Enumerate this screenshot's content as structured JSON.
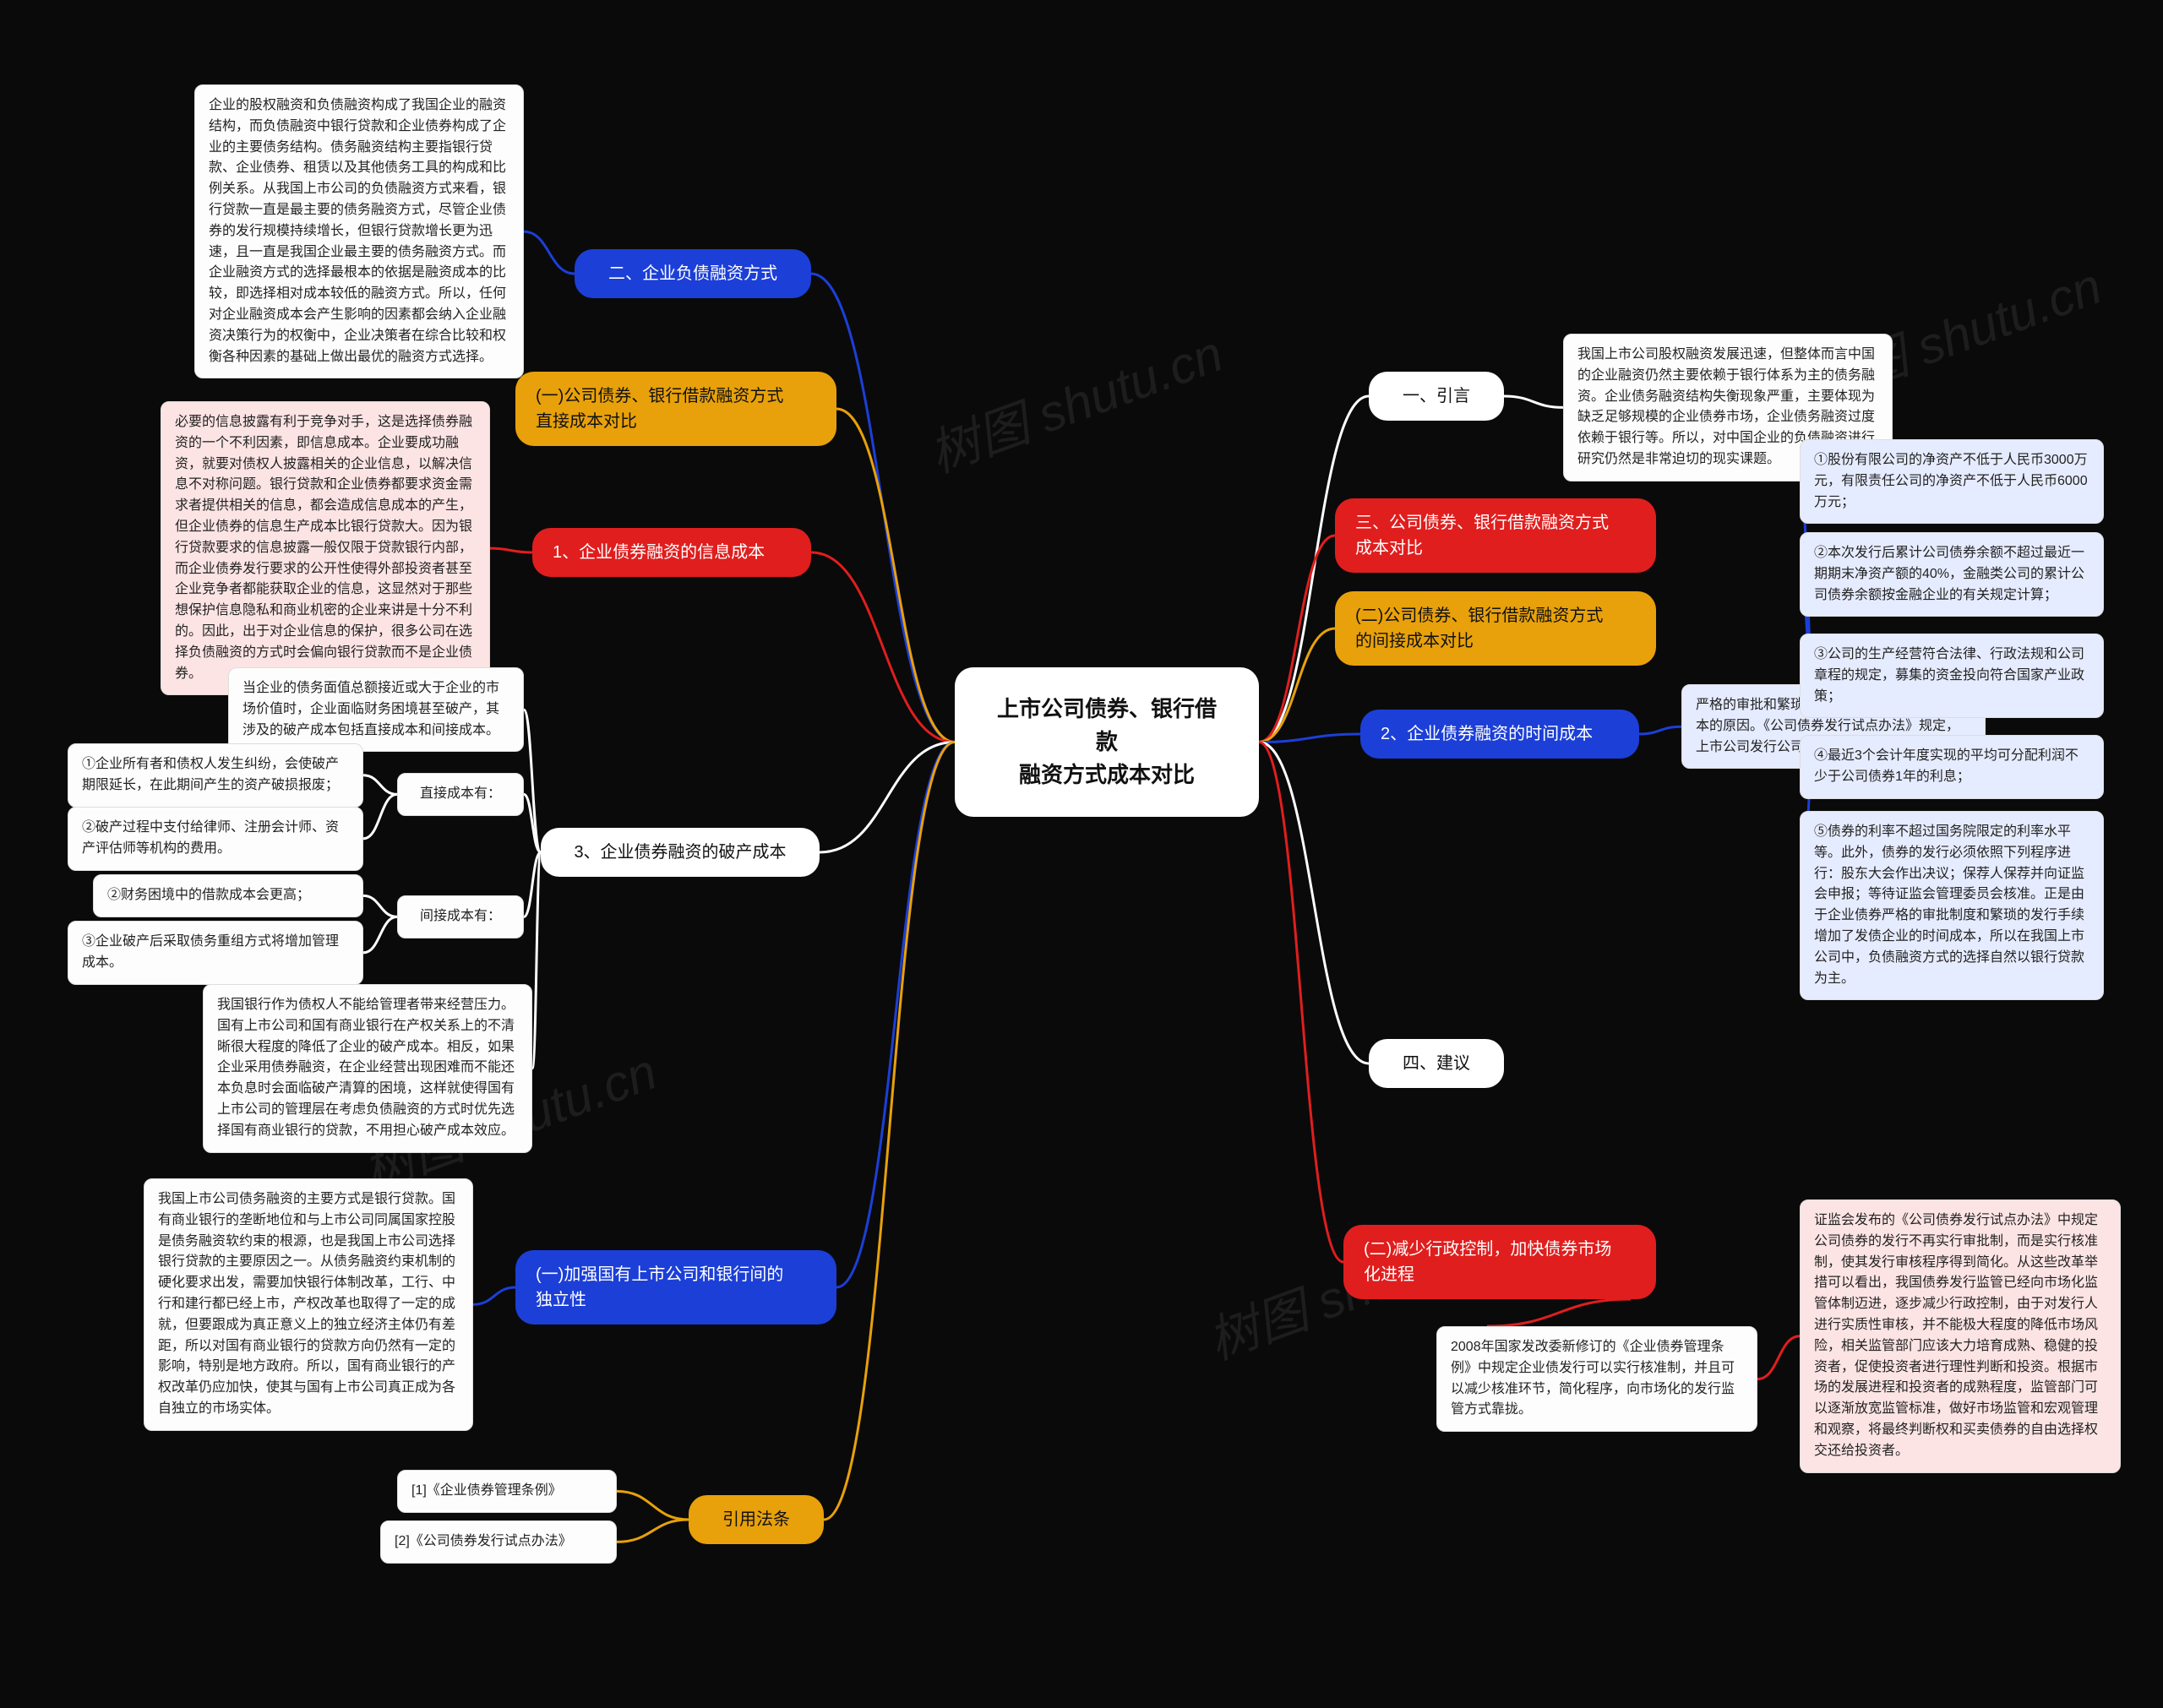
{
  "watermark": "树图 shutu.cn",
  "center": {
    "label": "上市公司债券、银行借款\n融资方式成本对比",
    "bg": "#ffffff",
    "fg": "#111111"
  },
  "branches": {
    "b1": {
      "label": "一、引言",
      "bg": "#ffffff",
      "fg": "#111111",
      "edge": "#ffffff"
    },
    "b1_leaf": {
      "text": "我国上市公司股权融资发展迅速，但整体而言中国的企业融资仍然主要依赖于银行体系为主的债务融资。企业债务融资结构失衡现象严重，主要体现为缺乏足够规模的企业债券市场，企业债务融资过度依赖于银行等。所以，对中国企业的负债融资进行研究仍然是非常迫切的现实课题。"
    },
    "b2": {
      "label": "二、企业负债融资方式",
      "bg": "#1c3fd7",
      "fg": "#ffffff",
      "edge": "#1c3fd7"
    },
    "b2_leaf": {
      "text": "企业的股权融资和负债融资构成了我国企业的融资结构，而负债融资中银行贷款和企业债券构成了企业的主要债务结构。债务融资结构主要指银行贷款、企业债券、租赁以及其他债务工具的构成和比例关系。从我国上市公司的负债融资方式来看，银行贷款一直是最主要的债务融资方式，尽管企业债券的发行规模持续增长，但银行贷款增长更为迅速，且一直是我国企业最主要的债务融资方式。而企业融资方式的选择最根本的依据是融资成本的比较，即选择相对成本较低的融资方式。所以，任何对企业融资成本会产生影响的因素都会纳入企业融资决策行为的权衡中，企业决策者在综合比较和权衡各种因素的基础上做出最优的融资方式选择。"
    },
    "b3": {
      "label": "三、公司债券、银行借款融资方式\n成本对比",
      "bg": "#e01e1e",
      "fg": "#ffffff",
      "edge": "#e01e1e"
    },
    "b3a": {
      "label": "(一)公司债券、银行借款融资方式\n直接成本对比",
      "bg": "#e8a10a",
      "fg": "#111111",
      "edge": "#e8a10a"
    },
    "b3b": {
      "label": "(二)公司债券、银行借款融资方式\n的间接成本对比",
      "bg": "#e8a10a",
      "fg": "#111111",
      "edge": "#e8a10a"
    },
    "b3b1": {
      "label": "1、企业债券融资的信息成本",
      "bg": "#e01e1e",
      "fg": "#ffffff",
      "edge": "#e01e1e"
    },
    "b3b1_leaf": {
      "text": "必要的信息披露有利于竞争对手，这是选择债券融资的一个不利因素，即信息成本。企业要成功融资，就要对债权人披露相关的企业信息，以解决信息不对称问题。银行贷款和企业债券都要求资金需求者提供相关的信息，都会造成信息成本的产生，但企业债券的信息生产成本比银行贷款大。因为银行贷款要求的信息披露一般仅限于贷款银行内部，而企业债券发行要求的公开性使得外部投资者甚至企业竞争者都能获取企业的信息，这显然对于那些想保护信息隐私和商业机密的企业来讲是十分不利的。因此，出于对企业信息的保护，很多公司在选择负债融资的方式时会偏向银行贷款而不是企业债券。",
      "bg": "#fde4e4"
    },
    "b3b2": {
      "label": "2、企业债券融资的时间成本",
      "bg": "#1c3fd7",
      "fg": "#ffffff",
      "edge": "#1c3fd7"
    },
    "b3b2_intro": {
      "text": "严格的审批和繁琐的发行手续都是造成时间成本的原因。《公司债券发行试点办法》规定，上市公司发行公司债券必须符合下列条件：",
      "bg": "#e6ecff"
    },
    "b3b2_items": {
      "i1": "①股份有限公司的净资产不低于人民币3000万元，有限责任公司的净资产不低于人民币6000万元；",
      "i2": "②本次发行后累计公司债券余额不超过最近一期期末净资产额的40%，金融类公司的累计公司债券余额按金融企业的有关规定计算；",
      "i3": "③公司的生产经营符合法律、行政法规和公司章程的规定，募集的资金投向符合国家产业政策；",
      "i4": "④最近3个会计年度实现的平均可分配利润不少于公司债券1年的利息；",
      "i5": "⑤债券的利率不超过国务院限定的利率水平等。此外，债券的发行必须依照下列程序进行：股东大会作出决议；保荐人保荐并向证监会申报；等待证监会管理委员会核准。正是由于企业债券严格的审批制度和繁琐的发行手续增加了发债企业的时间成本，所以在我国上市公司中，负债融资方式的选择自然以银行贷款为主。"
    },
    "b3b3": {
      "label": "3、企业债券融资的破产成本",
      "bg": "#ffffff",
      "fg": "#111111",
      "edge": "#ffffff"
    },
    "b3b3_intro": {
      "text": "当企业的债务面值总额接近或大于企业的市场价值时，企业面临财务困境甚至破产，其涉及的破产成本包括直接成本和间接成本。"
    },
    "b3b3_direct_label": "直接成本有：",
    "b3b3_direct": {
      "d1": "①企业所有者和债权人发生纠纷，会使破产期限延长，在此期间产生的资产破损报废；",
      "d2": "②破产过程中支付给律师、注册会计师、资产评估师等机构的费用。"
    },
    "b3b3_indirect_label": "间接成本有：",
    "b3b3_indirect": {
      "n1": "②财务困境中的借款成本会更高；",
      "n2": "③企业破产后采取债务重组方式将增加管理成本。"
    },
    "b3b3_tail": {
      "text": "我国银行作为债权人不能给管理者带来经营压力。国有上市公司和国有商业银行在产权关系上的不清晰很大程度的降低了企业的破产成本。相反，如果企业采用债券融资，在企业经营出现困难而不能还本负息时会面临破产清算的困境，这样就使得国有上市公司的管理层在考虑负债融资的方式时优先选择国有商业银行的贷款，不用担心破产成本效应。"
    },
    "b4": {
      "label": "四、建议",
      "bg": "#ffffff",
      "fg": "#111111",
      "edge": "#ffffff"
    },
    "b4a": {
      "label": "(一)加强国有上市公司和银行间的\n独立性",
      "bg": "#1c3fd7",
      "fg": "#ffffff",
      "edge": "#1c3fd7"
    },
    "b4a_leaf": {
      "text": "我国上市公司债务融资的主要方式是银行贷款。国有商业银行的垄断地位和与上市公司同属国家控股是债务融资软约束的根源，也是我国上市公司选择银行贷款的主要原因之一。从债务融资约束机制的硬化要求出发，需要加快银行体制改革，工行、中行和建行都已经上市，产权改革也取得了一定的成就，但要跟成为真正意义上的独立经济主体仍有差距，所以对国有商业银行的贷款方向仍然有一定的影响，特别是地方政府。所以，国有商业银行的产权改革仍应加快，使其与国有上市公司真正成为各自独立的市场实体。"
    },
    "b4b": {
      "label": "(二)减少行政控制，加快债券市场\n化进程",
      "bg": "#e01e1e",
      "fg": "#ffffff",
      "edge": "#e01e1e"
    },
    "b4b_mid": {
      "text": "2008年国家发改委新修订的《企业债券管理条例》中规定企业债发行可以实行核准制，并且可以减少核准环节，简化程序，向市场化的发行监管方式靠拢。"
    },
    "b4b_leaf": {
      "text": "证监会发布的《公司债券发行试点办法》中规定公司债券的发行不再实行审批制，而是实行核准制，使其发行审核程序得到简化。从这些改革举措可以看出，我国债券发行监管已经向市场化监管体制迈进，逐步减少行政控制，由于对发行人进行实质性审核，并不能极大程度的降低市场风险，相关监管部门应该大力培育成熟、稳健的投资者，促使投资者进行理性判断和投资。根据市场的发展进程和投资者的成熟程度，监管部门可以逐渐放宽监管标准，做好市场监管和宏观管理和观察，将最终判断权和买卖债券的自由选择权交还给投资者。",
      "bg": "#fde4e4"
    },
    "b5": {
      "label": "引用法条",
      "bg": "#e8a10a",
      "fg": "#111111",
      "edge": "#e8a10a"
    },
    "b5_items": {
      "r1": "[1]《企业债券管理条例》",
      "r2": "[2]《公司债券发行试点办法》"
    }
  },
  "edge_defaults": {
    "width": 3
  }
}
